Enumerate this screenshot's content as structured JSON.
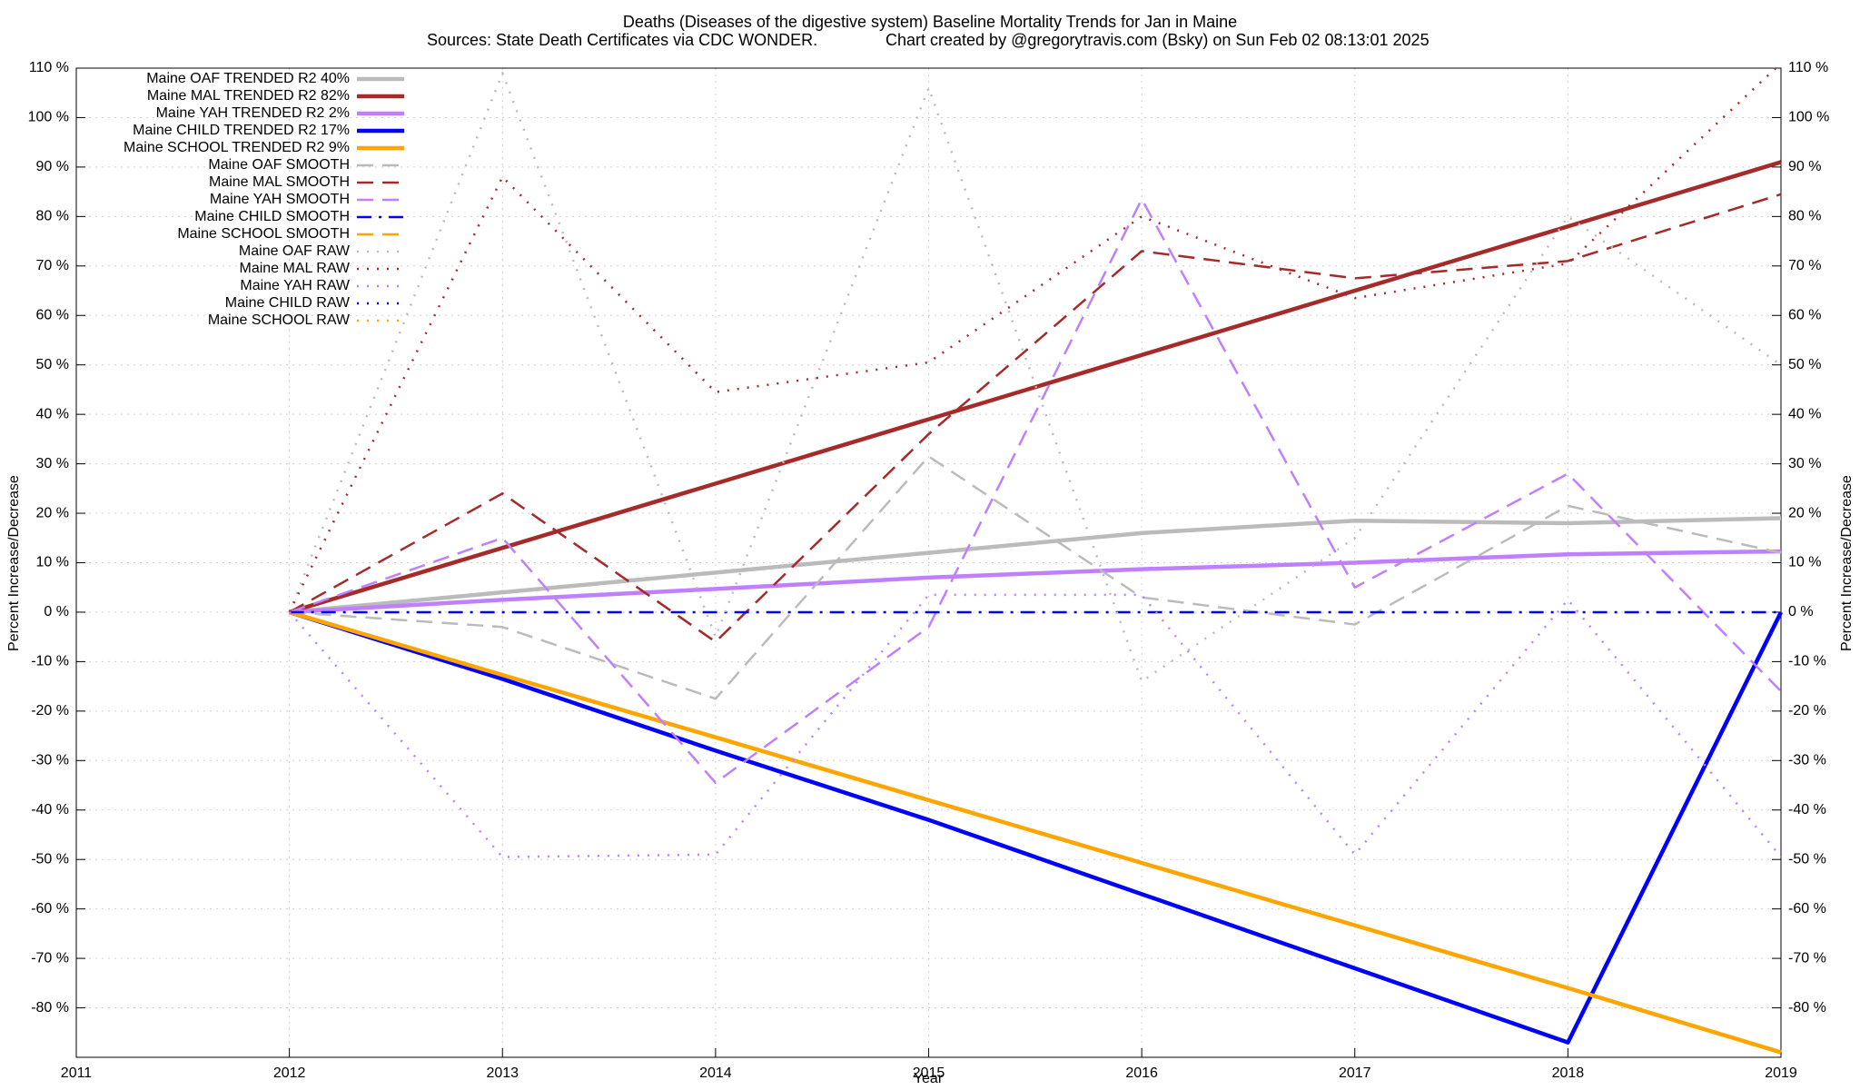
{
  "chart_data": {
    "type": "line",
    "title": "Deaths (Diseases of the digestive system)  Baseline Mortality Trends for Jan in Maine",
    "source": "Sources: State Death Certificates via CDC WONDER.",
    "credit": "Chart created by @gregorytravis.com (Bsky) on Sun Feb 02 08:13:01 2025",
    "xlabel": "Year",
    "ylabel": "Percent Increase/Decrease",
    "y2label": "Percent Increase/Decrease",
    "x": [
      2012,
      2013,
      2014,
      2015,
      2016,
      2017,
      2018,
      2019
    ],
    "xlim": [
      2011,
      2019
    ],
    "xticks": [
      2011,
      2012,
      2013,
      2014,
      2015,
      2016,
      2017,
      2018,
      2019
    ],
    "ylim": [
      -90,
      110
    ],
    "yticks": [
      {
        "value": -80,
        "label": "-80 %"
      },
      {
        "value": -70,
        "label": "-70 %"
      },
      {
        "value": -60,
        "label": "-60 %"
      },
      {
        "value": -50,
        "label": "-50 %"
      },
      {
        "value": -40,
        "label": "-40 %"
      },
      {
        "value": -30,
        "label": "-30 %"
      },
      {
        "value": -20,
        "label": "-20 %"
      },
      {
        "value": -10,
        "label": "-10 %"
      },
      {
        "value": 0,
        "label": "0 %"
      },
      {
        "value": 10,
        "label": "10 %"
      },
      {
        "value": 20,
        "label": "20 %"
      },
      {
        "value": 30,
        "label": "30 %"
      },
      {
        "value": 40,
        "label": "40 %"
      },
      {
        "value": 50,
        "label": "50 %"
      },
      {
        "value": 60,
        "label": "60 %"
      },
      {
        "value": 70,
        "label": "70 %"
      },
      {
        "value": 80,
        "label": "80 %"
      },
      {
        "value": 90,
        "label": "90 %"
      },
      {
        "value": 100,
        "label": "100 %"
      },
      {
        "value": 110,
        "label": "110 %"
      }
    ],
    "y2lim": [
      -90,
      110
    ],
    "y2ticks": [
      {
        "value": -80,
        "label": "-80 %"
      },
      {
        "value": -70,
        "label": "-70 %"
      },
      {
        "value": -60,
        "label": "-60 %"
      },
      {
        "value": -50,
        "label": "-50 %"
      },
      {
        "value": -40,
        "label": "-40 %"
      },
      {
        "value": -30,
        "label": "-30 %"
      },
      {
        "value": -20,
        "label": "-20 %"
      },
      {
        "value": -10,
        "label": "-10 %"
      },
      {
        "value": 0,
        "label": "0 %"
      },
      {
        "value": 10,
        "label": "10 %"
      },
      {
        "value": 20,
        "label": "20 %"
      },
      {
        "value": 30,
        "label": "30 %"
      },
      {
        "value": 40,
        "label": "40 %"
      },
      {
        "value": 50,
        "label": "50 %"
      },
      {
        "value": 60,
        "label": "60 %"
      },
      {
        "value": 70,
        "label": "70 %"
      },
      {
        "value": 80,
        "label": "80 %"
      },
      {
        "value": 90,
        "label": "90 %"
      },
      {
        "value": 100,
        "label": "100 %"
      },
      {
        "value": 110,
        "label": "110 %"
      }
    ],
    "grid": true,
    "legend": "upper left",
    "series": [
      {
        "name": "Maine OAF TRENDED R2  40%",
        "color": "#bbbbbb",
        "style": "solid",
        "width": 4.5,
        "values": [
          0,
          4,
          8,
          12,
          16,
          18.5,
          18,
          19
        ]
      },
      {
        "name": "Maine MAL TRENDED R2  82%",
        "color": "#a52a2a",
        "style": "solid",
        "width": 4.5,
        "values": [
          0,
          13,
          26,
          39,
          52,
          65,
          78,
          91
        ]
      },
      {
        "name": "Maine YAH TRENDED R2  2%",
        "color": "#bf7fff",
        "style": "solid",
        "width": 4.5,
        "values": [
          0,
          2.5,
          4.7,
          7,
          8.7,
          10,
          11.7,
          12.3
        ]
      },
      {
        "name": "Maine CHILD TRENDED R2  17%",
        "color": "#0000ff",
        "style": "solid",
        "width": 4.5,
        "values": [
          0,
          -13.5,
          -28,
          -42,
          -57,
          -72,
          -87,
          0
        ]
      },
      {
        "name": "Maine SCHOOL TRENDED R2  9%",
        "color": "#ffa500",
        "style": "solid",
        "width": 4.5,
        "values": [
          0,
          -12.7,
          -25.3,
          -38,
          -50.7,
          -63.3,
          -76,
          -89
        ]
      },
      {
        "name": "Maine OAF SMOOTH",
        "color": "#bbbbbb",
        "style": "dashed",
        "width": 2.5,
        "values": [
          0,
          -3,
          -17.5,
          31.5,
          3,
          -2.5,
          21.5,
          12
        ]
      },
      {
        "name": "Maine MAL SMOOTH",
        "color": "#a52a2a",
        "style": "dashed",
        "width": 2.5,
        "values": [
          0,
          24,
          -6,
          36,
          73,
          67.5,
          71,
          84.5
        ]
      },
      {
        "name": "Maine YAH SMOOTH",
        "color": "#bf7fff",
        "style": "dashed",
        "width": 2.5,
        "values": [
          0,
          15,
          -34.5,
          -3,
          83.5,
          5,
          28,
          -16
        ]
      },
      {
        "name": "Maine CHILD SMOOTH",
        "color": "#0000ff",
        "style": "dashdot",
        "width": 2.5,
        "values": [
          0,
          0,
          0,
          0,
          0,
          0,
          0,
          0
        ]
      },
      {
        "name": "Maine SCHOOL SMOOTH",
        "color": "#ffa500",
        "style": "dashed",
        "width": 2.5,
        "values": [
          null,
          null,
          null,
          null,
          null,
          null,
          null,
          null
        ]
      },
      {
        "name": "Maine OAF RAW",
        "color": "#bbbbbb",
        "style": "dotted",
        "width": 2.5,
        "values": [
          0,
          109,
          -5,
          106,
          -14,
          15,
          80,
          50
        ]
      },
      {
        "name": "Maine MAL RAW",
        "color": "#a52a2a",
        "style": "dotted",
        "width": 2.5,
        "values": [
          0,
          88,
          44.5,
          50.5,
          80,
          63.5,
          70.5,
          111
        ]
      },
      {
        "name": "Maine YAH RAW",
        "color": "#bf7fff",
        "style": "dotted",
        "width": 2.5,
        "values": [
          0,
          -49.5,
          -49,
          3.5,
          3.5,
          -49,
          2.5,
          -49.5
        ]
      },
      {
        "name": "Maine CHILD RAW",
        "color": "#0000ff",
        "style": "dotted",
        "width": 2.5,
        "values": [
          null,
          null,
          null,
          null,
          null,
          null,
          null,
          null
        ]
      },
      {
        "name": "Maine SCHOOL RAW",
        "color": "#ffa500",
        "style": "dotted",
        "width": 2.5,
        "values": [
          null,
          null,
          null,
          null,
          null,
          null,
          null,
          null
        ]
      }
    ]
  }
}
